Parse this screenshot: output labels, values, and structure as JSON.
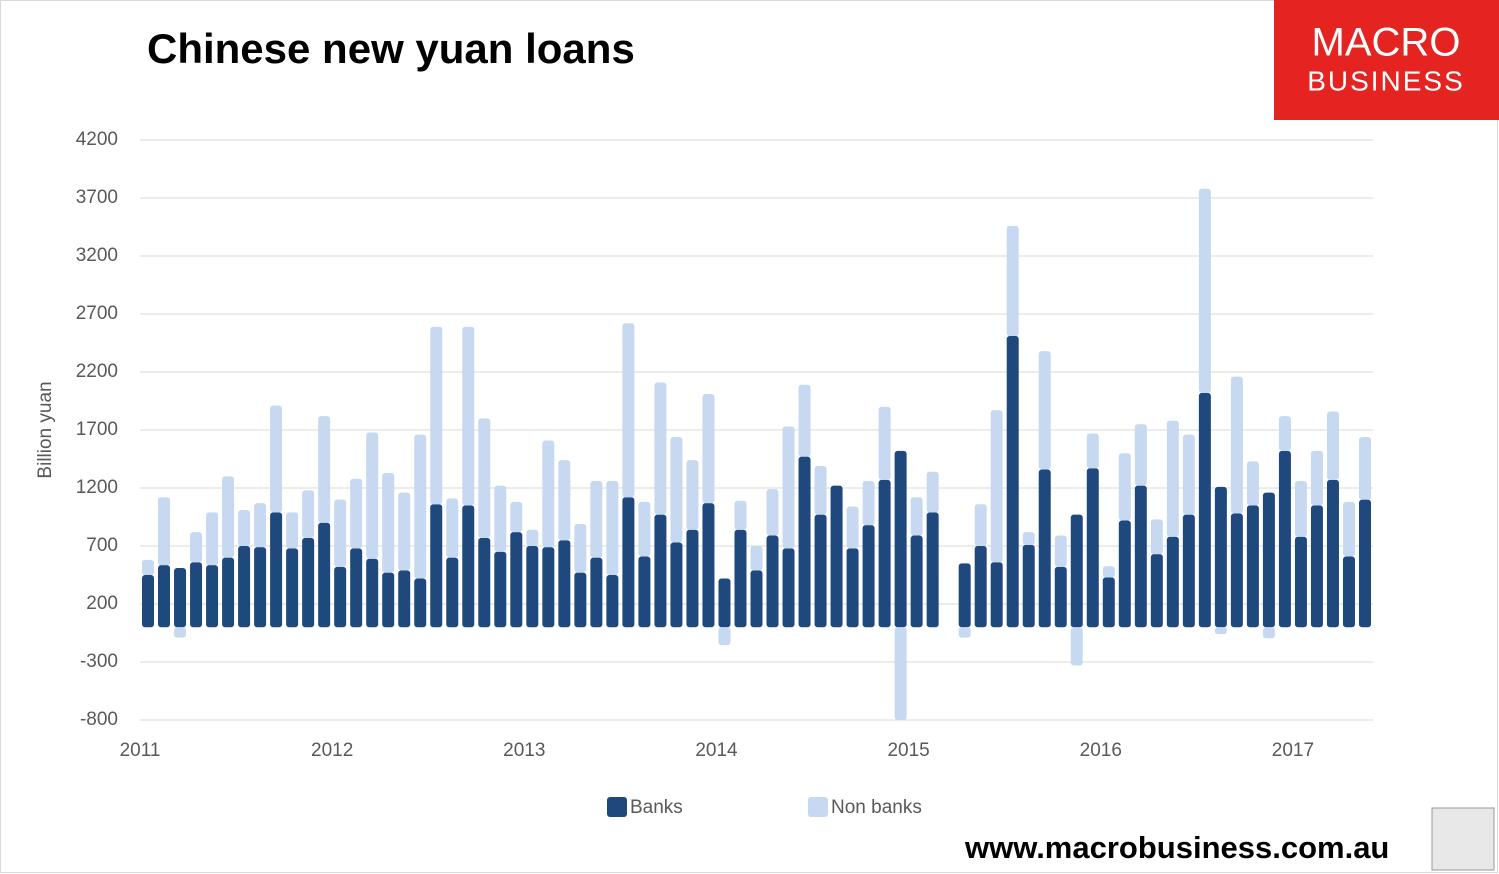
{
  "chart_data": {
    "type": "stacked-bar",
    "title": "Chinese new yuan loans",
    "y_label": "Billion yuan",
    "categories": [
      "2011",
      null,
      null,
      null,
      null,
      null,
      null,
      null,
      null,
      null,
      null,
      null,
      "2012",
      null,
      null,
      null,
      null,
      null,
      null,
      null,
      null,
      null,
      null,
      null,
      "2013",
      null,
      null,
      null,
      null,
      null,
      null,
      null,
      null,
      null,
      null,
      null,
      "2014",
      null,
      null,
      null,
      null,
      null,
      null,
      null,
      null,
      null,
      null,
      null,
      "2015",
      null,
      null,
      null,
      null,
      null,
      null,
      null,
      null,
      null,
      null,
      null,
      "2016",
      null,
      null,
      null,
      null,
      null,
      null,
      null,
      null,
      null,
      null,
      null,
      "2017",
      null,
      null,
      null,
      null
    ],
    "series": [
      {
        "name": "Banks",
        "color": "#1f497d",
        "values": [
          450,
          535,
          510,
          560,
          535,
          600,
          700,
          690,
          990,
          680,
          770,
          900,
          520,
          680,
          590,
          470,
          490,
          420,
          1060,
          600,
          1050,
          770,
          650,
          820,
          700,
          690,
          750,
          470,
          600,
          450,
          1120,
          610,
          970,
          730,
          840,
          1070,
          420,
          840,
          490,
          790,
          680,
          1470,
          970,
          1220,
          680,
          880,
          1270,
          1520,
          790,
          990,
          null,
          550,
          700,
          560,
          2510,
          710,
          1360,
          520,
          970,
          1370,
          430,
          920,
          1220,
          630,
          780,
          970,
          2020,
          1210,
          980,
          1050,
          1160,
          1520,
          780,
          1050,
          1270,
          610,
          1100
        ]
      },
      {
        "name": "Non banks",
        "color": "#c6d9f1",
        "values": [
          130,
          585,
          -90,
          260,
          455,
          700,
          310,
          380,
          920,
          310,
          410,
          920,
          580,
          600,
          1090,
          860,
          670,
          1240,
          1530,
          510,
          1540,
          1030,
          570,
          260,
          140,
          920,
          690,
          420,
          660,
          810,
          1500,
          470,
          1140,
          910,
          600,
          940,
          -155,
          250,
          210,
          400,
          1050,
          620,
          420,
          0,
          360,
          380,
          630,
          -800,
          330,
          350,
          null,
          -90,
          360,
          1310,
          950,
          110,
          1020,
          270,
          -330,
          300,
          95,
          580,
          530,
          300,
          1000,
          690,
          1760,
          -60,
          1180,
          380,
          -95,
          300,
          480,
          470,
          590,
          470,
          540
        ]
      }
    ],
    "ylim": [
      -800,
      4200
    ],
    "yticks": [
      -800,
      -300,
      200,
      700,
      1200,
      1700,
      2200,
      2700,
      3200,
      3700,
      4200
    ],
    "grid": true,
    "legend": "bottom"
  },
  "branding": {
    "logo_top": "MACRO",
    "logo_bottom": "BUSINESS",
    "url": "www.macrobusiness.com.au"
  }
}
